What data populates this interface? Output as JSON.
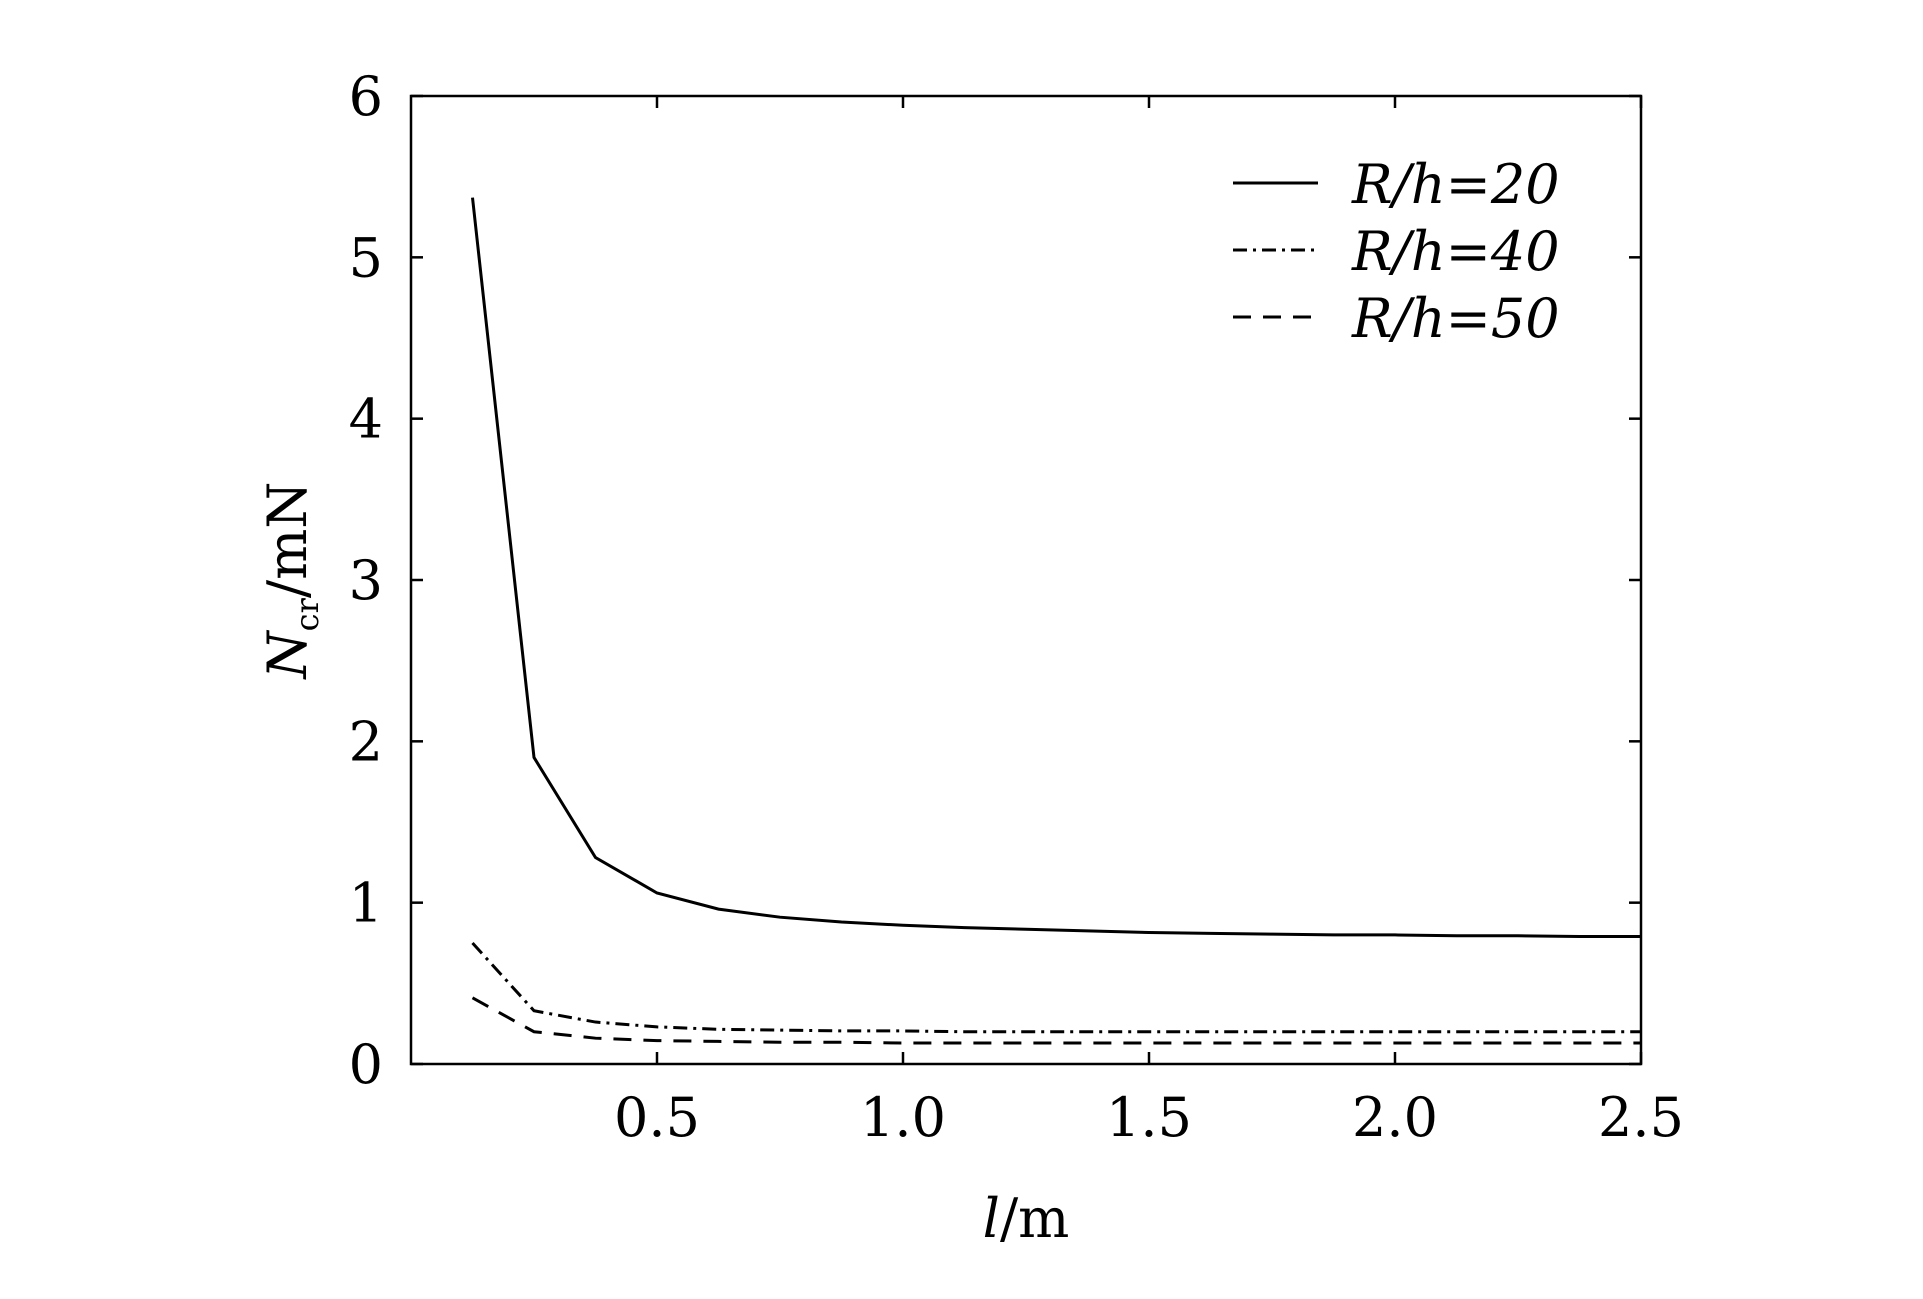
{
  "chart_data": {
    "type": "line",
    "title": "",
    "xlabel": "l/m",
    "ylabel": "N_cr/mN",
    "xlim": [
      0,
      2.5
    ],
    "ylim": [
      0,
      6
    ],
    "xticks": [
      "0.5",
      "1.0",
      "1.5",
      "2.0",
      "2.5"
    ],
    "xtick_values": [
      0.5,
      1.0,
      1.5,
      2.0,
      2.5
    ],
    "yticks": [
      "0",
      "1",
      "2",
      "3",
      "4",
      "5",
      "6"
    ],
    "ytick_values": [
      0,
      1,
      2,
      3,
      4,
      5,
      6
    ],
    "grid": false,
    "legend_position": "top-right",
    "x": [
      0.125,
      0.25,
      0.375,
      0.5,
      0.625,
      0.75,
      0.875,
      1.0,
      1.125,
      1.25,
      1.375,
      1.5,
      1.625,
      1.75,
      1.875,
      2.0,
      2.125,
      2.25,
      2.375,
      2.5
    ],
    "series": [
      {
        "name": "R/h=20",
        "style": "solid",
        "values": [
          5.37,
          1.9,
          1.28,
          1.06,
          0.96,
          0.91,
          0.88,
          0.86,
          0.845,
          0.835,
          0.825,
          0.815,
          0.81,
          0.805,
          0.8,
          0.8,
          0.795,
          0.795,
          0.79,
          0.79
        ]
      },
      {
        "name": "R/h=40",
        "style": "dashdot",
        "values": [
          0.75,
          0.33,
          0.26,
          0.23,
          0.215,
          0.21,
          0.205,
          0.205,
          0.2,
          0.2,
          0.2,
          0.2,
          0.2,
          0.2,
          0.2,
          0.2,
          0.2,
          0.2,
          0.2,
          0.2
        ]
      },
      {
        "name": "R/h=50",
        "style": "dashed",
        "values": [
          0.41,
          0.2,
          0.16,
          0.145,
          0.14,
          0.135,
          0.135,
          0.13,
          0.13,
          0.13,
          0.13,
          0.13,
          0.13,
          0.13,
          0.13,
          0.13,
          0.13,
          0.13,
          0.13,
          0.13
        ]
      }
    ]
  }
}
